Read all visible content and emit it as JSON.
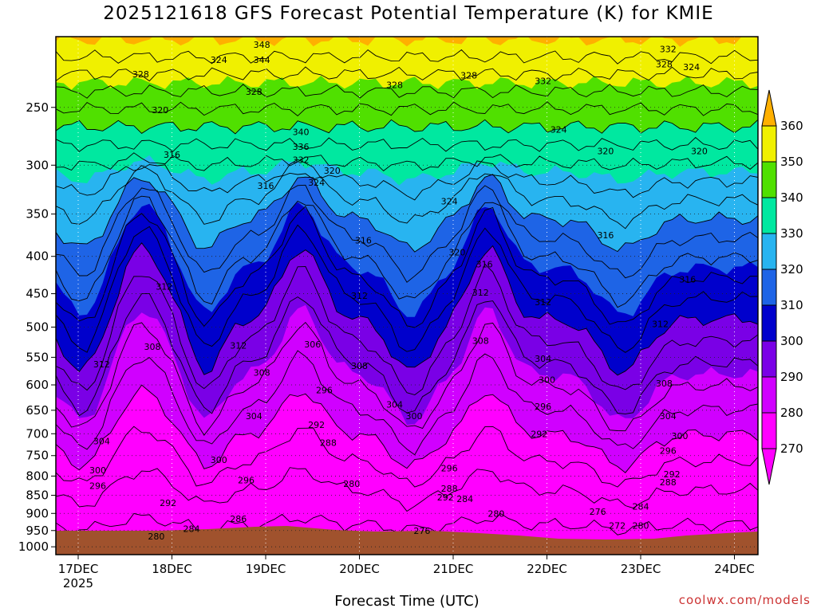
{
  "title": "2025121618 GFS Forecast Potential Temperature (K) for KMIE",
  "credit": "coolwx.com/models",
  "chart_data": {
    "type": "heatmap",
    "title": "2025121618 GFS Forecast Potential Temperature (K) for KMIE",
    "xlabel": "Forecast Time (UTC)",
    "ylabel": "",
    "x_ticks": [
      "17DEC",
      "18DEC",
      "19DEC",
      "20DEC",
      "21DEC",
      "22DEC",
      "23DEC",
      "24DEC"
    ],
    "x_sub": "2025",
    "y_ticks": [
      250,
      300,
      350,
      400,
      450,
      500,
      550,
      600,
      650,
      700,
      750,
      800,
      850,
      900,
      950,
      1000
    ],
    "colorbar": {
      "levels": [
        270,
        280,
        290,
        300,
        310,
        320,
        330,
        340,
        350,
        360
      ],
      "colors": [
        "#ff00ff",
        "#d000ff",
        "#7a00e6",
        "#0000cc",
        "#1e64e6",
        "#28b4f0",
        "#00e8a0",
        "#50e000",
        "#f0f000",
        "#ffb000"
      ]
    },
    "contour_labels": [
      {
        "label": "348",
        "time": "18DEC 23Z",
        "pressure": 205
      },
      {
        "label": "344",
        "time": "18DEC 23Z",
        "pressure": 215
      },
      {
        "label": "328",
        "time": "17DEC 16Z",
        "pressure": 225
      },
      {
        "label": "324",
        "time": "18DEC 12Z",
        "pressure": 215
      },
      {
        "label": "328",
        "time": "18DEC 21Z",
        "pressure": 238
      },
      {
        "label": "320",
        "time": "17DEC 21Z",
        "pressure": 252
      },
      {
        "label": "340",
        "time": "19DEC 09Z",
        "pressure": 270
      },
      {
        "label": "336",
        "time": "19DEC 09Z",
        "pressure": 283
      },
      {
        "label": "332",
        "time": "19DEC 09Z",
        "pressure": 295
      },
      {
        "label": "328",
        "time": "20DEC 09Z",
        "pressure": 233
      },
      {
        "label": "328",
        "time": "21DEC 04Z",
        "pressure": 226
      },
      {
        "label": "332",
        "time": "21DEC 23Z",
        "pressure": 230
      },
      {
        "label": "332",
        "time": "23DEC 07Z",
        "pressure": 208
      },
      {
        "label": "328",
        "time": "23DEC 06Z",
        "pressure": 218
      },
      {
        "label": "324",
        "time": "23DEC 13Z",
        "pressure": 220
      },
      {
        "label": "324",
        "time": "22DEC 03Z",
        "pressure": 268
      },
      {
        "label": "320",
        "time": "22DEC 15Z",
        "pressure": 287
      },
      {
        "label": "320",
        "time": "23DEC 15Z",
        "pressure": 287
      },
      {
        "label": "316",
        "time": "18DEC 00Z",
        "pressure": 290
      },
      {
        "label": "320",
        "time": "19DEC 17Z",
        "pressure": 305
      },
      {
        "label": "324",
        "time": "19DEC 13Z",
        "pressure": 317
      },
      {
        "label": "316",
        "time": "19DEC 00Z",
        "pressure": 320
      },
      {
        "label": "324",
        "time": "20DEC 23Z",
        "pressure": 336
      },
      {
        "label": "316",
        "time": "20DEC 01Z",
        "pressure": 380
      },
      {
        "label": "320",
        "time": "21DEC 01Z",
        "pressure": 395
      },
      {
        "label": "316",
        "time": "21DEC 08Z",
        "pressure": 410
      },
      {
        "label": "316",
        "time": "22DEC 15Z",
        "pressure": 374
      },
      {
        "label": "316",
        "time": "23DEC 12Z",
        "pressure": 430
      },
      {
        "label": "312",
        "time": "17DEC 22Z",
        "pressure": 440
      },
      {
        "label": "312",
        "time": "20DEC 00Z",
        "pressure": 453
      },
      {
        "label": "312",
        "time": "21DEC 07Z",
        "pressure": 448
      },
      {
        "label": "312",
        "time": "21DEC 23Z",
        "pressure": 462
      },
      {
        "label": "312",
        "time": "23DEC 05Z",
        "pressure": 495
      },
      {
        "label": "312",
        "time": "18DEC 17Z",
        "pressure": 530
      },
      {
        "label": "312",
        "time": "17DEC 06Z",
        "pressure": 562
      },
      {
        "label": "308",
        "time": "17DEC 19Z",
        "pressure": 532
      },
      {
        "label": "308",
        "time": "18DEC 23Z",
        "pressure": 577
      },
      {
        "label": "308",
        "time": "20DEC 00Z",
        "pressure": 565
      },
      {
        "label": "308",
        "time": "21DEC 07Z",
        "pressure": 522
      },
      {
        "label": "308",
        "time": "23DEC 06Z",
        "pressure": 597
      },
      {
        "label": "306",
        "time": "19DEC 12Z",
        "pressure": 528
      },
      {
        "label": "304",
        "time": "21DEC 23Z",
        "pressure": 552
      },
      {
        "label": "304",
        "time": "20DEC 09Z",
        "pressure": 638
      },
      {
        "label": "304",
        "time": "18DEC 21Z",
        "pressure": 662
      },
      {
        "label": "304",
        "time": "17DEC 06Z",
        "pressure": 716
      },
      {
        "label": "304",
        "time": "23DEC 07Z",
        "pressure": 662
      },
      {
        "label": "300",
        "time": "20DEC 14Z",
        "pressure": 662
      },
      {
        "label": "300",
        "time": "22DEC 00Z",
        "pressure": 590
      },
      {
        "label": "300",
        "time": "23DEC 10Z",
        "pressure": 705
      },
      {
        "label": "300",
        "time": "18DEC 12Z",
        "pressure": 760
      },
      {
        "label": "300",
        "time": "17DEC 05Z",
        "pressure": 785
      },
      {
        "label": "296",
        "time": "19DEC 15Z",
        "pressure": 610
      },
      {
        "label": "296",
        "time": "21DEC 23Z",
        "pressure": 642
      },
      {
        "label": "296",
        "time": "23DEC 07Z",
        "pressure": 738
      },
      {
        "label": "296",
        "time": "20DEC 23Z",
        "pressure": 780
      },
      {
        "label": "296",
        "time": "18DEC 19Z",
        "pressure": 810
      },
      {
        "label": "296",
        "time": "17DEC 05Z",
        "pressure": 825
      },
      {
        "label": "292",
        "time": "19DEC 13Z",
        "pressure": 680
      },
      {
        "label": "292",
        "time": "21DEC 22Z",
        "pressure": 700
      },
      {
        "label": "292",
        "time": "23DEC 08Z",
        "pressure": 795
      },
      {
        "label": "292",
        "time": "20DEC 22Z",
        "pressure": 855
      },
      {
        "label": "292",
        "time": "17DEC 23Z",
        "pressure": 870
      },
      {
        "label": "288",
        "time": "19DEC 16Z",
        "pressure": 720
      },
      {
        "label": "288",
        "time": "20DEC 23Z",
        "pressure": 832
      },
      {
        "label": "288",
        "time": "23DEC 07Z",
        "pressure": 815
      },
      {
        "label": "286",
        "time": "18DEC 17Z",
        "pressure": 915
      },
      {
        "label": "284",
        "time": "21DEC 03Z",
        "pressure": 860
      },
      {
        "label": "284",
        "time": "18DEC 05Z",
        "pressure": 945
      },
      {
        "label": "284",
        "time": "23DEC 00Z",
        "pressure": 880
      },
      {
        "label": "280",
        "time": "19DEC 22Z",
        "pressure": 820
      },
      {
        "label": "280",
        "time": "21DEC 11Z",
        "pressure": 900
      },
      {
        "label": "280",
        "time": "23DEC 00Z",
        "pressure": 935
      },
      {
        "label": "280",
        "time": "17DEC 20Z",
        "pressure": 968
      },
      {
        "label": "276",
        "time": "20DEC 16Z",
        "pressure": 950
      },
      {
        "label": "276",
        "time": "22DEC 13Z",
        "pressure": 895
      },
      {
        "label": "272",
        "time": "22DEC 18Z",
        "pressure": 935
      }
    ]
  }
}
